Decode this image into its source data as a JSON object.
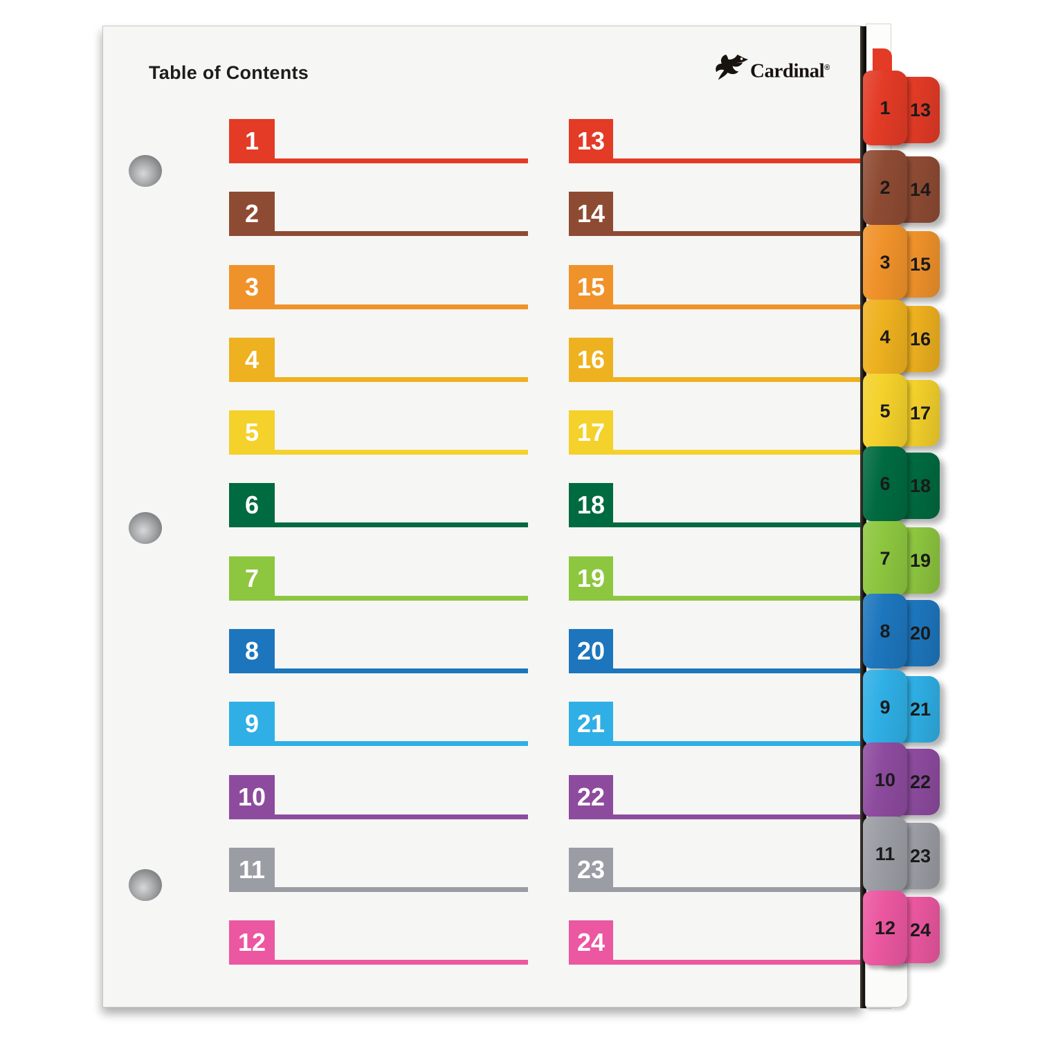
{
  "page_title": "Table of Contents",
  "brand": {
    "name": "Cardinal",
    "registered_mark": "®"
  },
  "toc_sections": [
    {
      "left_number": "1",
      "right_number": "13",
      "color": "#e33b26"
    },
    {
      "left_number": "2",
      "right_number": "14",
      "color": "#8e4b33"
    },
    {
      "left_number": "3",
      "right_number": "15",
      "color": "#f0922a"
    },
    {
      "left_number": "4",
      "right_number": "16",
      "color": "#eeb11f"
    },
    {
      "left_number": "5",
      "right_number": "17",
      "color": "#f4d12b"
    },
    {
      "left_number": "6",
      "right_number": "18",
      "color": "#006a40"
    },
    {
      "left_number": "7",
      "right_number": "19",
      "color": "#8dc63f"
    },
    {
      "left_number": "8",
      "right_number": "20",
      "color": "#1d76bd"
    },
    {
      "left_number": "9",
      "right_number": "21",
      "color": "#2fafe5"
    },
    {
      "left_number": "10",
      "right_number": "22",
      "color": "#8d4b9e"
    },
    {
      "left_number": "11",
      "right_number": "23",
      "color": "#9b9da4"
    },
    {
      "left_number": "12",
      "right_number": "24",
      "color": "#eb57a0"
    }
  ],
  "colors": {
    "sheet_background": "#f6f6f4",
    "spine_edge": "#15110e",
    "entry_number_text": "#ffffff",
    "tab_number_text": "#1a1a1a",
    "title_text": "#1d1d1b"
  }
}
